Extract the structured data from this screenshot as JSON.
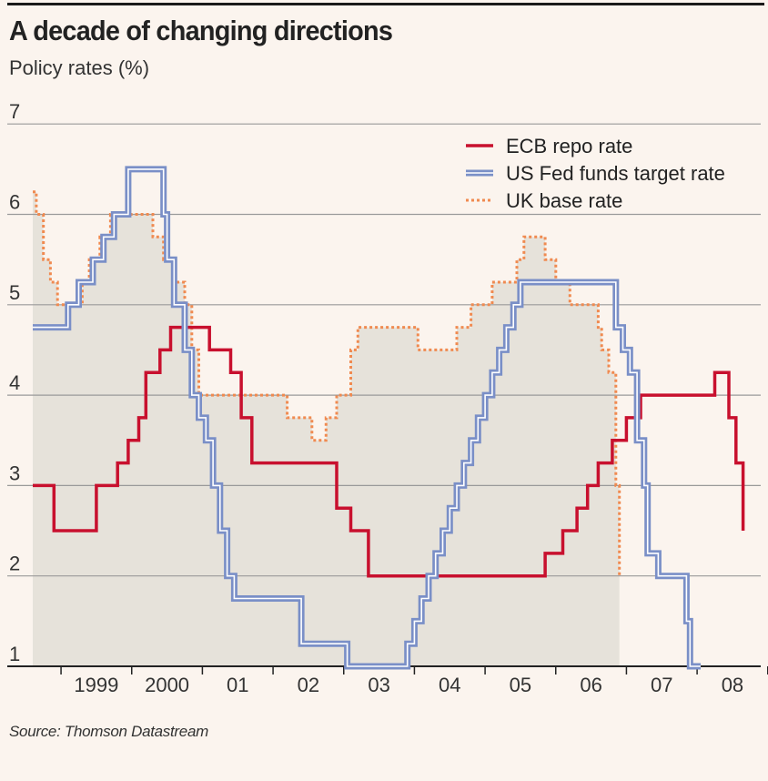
{
  "title": "A decade of changing directions",
  "subtitle": "Policy rates (%)",
  "source": "Source: Thomson Datastream",
  "chart_data": {
    "type": "line",
    "x_tick_labels": [
      "1999",
      "2000",
      "01",
      "02",
      "03",
      "04",
      "05",
      "06",
      "07",
      "08"
    ],
    "y_ticks": [
      1,
      2,
      3,
      4,
      5,
      6,
      7
    ],
    "ylim": [
      1,
      7
    ],
    "xlim": [
      1998.6,
      2008.9
    ],
    "grid": true,
    "legend_position": "top-right",
    "colors": {
      "ecb": "#c8102e",
      "fed": "#7a8fc7",
      "uk": "#f08a50",
      "uk_fill": "#e6e2da",
      "grid": "#9a9a9a"
    },
    "series": [
      {
        "name": "ECB repo rate",
        "style": "solid",
        "points": [
          [
            1998.6,
            3.0
          ],
          [
            1998.9,
            3.0
          ],
          [
            1998.9,
            2.5
          ],
          [
            1999.5,
            2.5
          ],
          [
            1999.5,
            3.0
          ],
          [
            1999.8,
            3.0
          ],
          [
            1999.8,
            3.25
          ],
          [
            1999.95,
            3.25
          ],
          [
            1999.95,
            3.5
          ],
          [
            2000.1,
            3.5
          ],
          [
            2000.1,
            3.75
          ],
          [
            2000.2,
            3.75
          ],
          [
            2000.2,
            4.25
          ],
          [
            2000.4,
            4.25
          ],
          [
            2000.4,
            4.5
          ],
          [
            2000.55,
            4.5
          ],
          [
            2000.55,
            4.75
          ],
          [
            2001.1,
            4.75
          ],
          [
            2001.1,
            4.5
          ],
          [
            2001.4,
            4.5
          ],
          [
            2001.4,
            4.25
          ],
          [
            2001.55,
            4.25
          ],
          [
            2001.55,
            3.75
          ],
          [
            2001.7,
            3.75
          ],
          [
            2001.7,
            3.25
          ],
          [
            2002.9,
            3.25
          ],
          [
            2002.9,
            2.75
          ],
          [
            2003.1,
            2.75
          ],
          [
            2003.1,
            2.5
          ],
          [
            2003.35,
            2.5
          ],
          [
            2003.35,
            2.0
          ],
          [
            2005.85,
            2.0
          ],
          [
            2005.85,
            2.25
          ],
          [
            2006.1,
            2.25
          ],
          [
            2006.1,
            2.5
          ],
          [
            2006.3,
            2.5
          ],
          [
            2006.3,
            2.75
          ],
          [
            2006.45,
            2.75
          ],
          [
            2006.45,
            3.0
          ],
          [
            2006.6,
            3.0
          ],
          [
            2006.6,
            3.25
          ],
          [
            2006.8,
            3.25
          ],
          [
            2006.8,
            3.5
          ],
          [
            2007.0,
            3.5
          ],
          [
            2007.0,
            3.75
          ],
          [
            2007.2,
            3.75
          ],
          [
            2007.2,
            4.0
          ],
          [
            2008.25,
            4.0
          ],
          [
            2008.25,
            4.25
          ],
          [
            2008.45,
            4.25
          ],
          [
            2008.45,
            3.75
          ],
          [
            2008.55,
            3.75
          ],
          [
            2008.55,
            3.25
          ],
          [
            2008.65,
            3.25
          ],
          [
            2008.65,
            2.5
          ]
        ]
      },
      {
        "name": "US Fed funds target rate",
        "style": "double",
        "points": [
          [
            1998.6,
            4.75
          ],
          [
            1999.1,
            4.75
          ],
          [
            1999.1,
            5.0
          ],
          [
            1999.25,
            5.0
          ],
          [
            1999.25,
            5.25
          ],
          [
            1999.45,
            5.25
          ],
          [
            1999.45,
            5.5
          ],
          [
            1999.6,
            5.5
          ],
          [
            1999.6,
            5.75
          ],
          [
            1999.75,
            5.75
          ],
          [
            1999.75,
            6.0
          ],
          [
            1999.95,
            6.0
          ],
          [
            1999.95,
            6.5
          ],
          [
            2000.45,
            6.5
          ],
          [
            2000.45,
            6.0
          ],
          [
            2000.5,
            6.0
          ],
          [
            2000.5,
            5.5
          ],
          [
            2000.6,
            5.5
          ],
          [
            2000.6,
            5.0
          ],
          [
            2000.75,
            5.0
          ],
          [
            2000.75,
            4.5
          ],
          [
            2000.85,
            4.5
          ],
          [
            2000.85,
            4.0
          ],
          [
            2000.95,
            4.0
          ],
          [
            2000.95,
            3.75
          ],
          [
            2001.05,
            3.75
          ],
          [
            2001.05,
            3.5
          ],
          [
            2001.15,
            3.5
          ],
          [
            2001.15,
            3.0
          ],
          [
            2001.25,
            3.0
          ],
          [
            2001.25,
            2.5
          ],
          [
            2001.35,
            2.5
          ],
          [
            2001.35,
            2.0
          ],
          [
            2001.45,
            2.0
          ],
          [
            2001.45,
            1.75
          ],
          [
            2002.4,
            1.75
          ],
          [
            2002.4,
            1.25
          ],
          [
            2003.05,
            1.25
          ],
          [
            2003.05,
            1.0
          ],
          [
            2003.9,
            1.0
          ],
          [
            2003.9,
            1.25
          ],
          [
            2004.0,
            1.25
          ],
          [
            2004.0,
            1.5
          ],
          [
            2004.1,
            1.5
          ],
          [
            2004.1,
            1.75
          ],
          [
            2004.2,
            1.75
          ],
          [
            2004.2,
            2.0
          ],
          [
            2004.3,
            2.0
          ],
          [
            2004.3,
            2.25
          ],
          [
            2004.4,
            2.25
          ],
          [
            2004.4,
            2.5
          ],
          [
            2004.5,
            2.5
          ],
          [
            2004.5,
            2.75
          ],
          [
            2004.6,
            2.75
          ],
          [
            2004.6,
            3.0
          ],
          [
            2004.7,
            3.0
          ],
          [
            2004.7,
            3.25
          ],
          [
            2004.8,
            3.25
          ],
          [
            2004.8,
            3.5
          ],
          [
            2004.9,
            3.5
          ],
          [
            2004.9,
            3.75
          ],
          [
            2005.0,
            3.75
          ],
          [
            2005.0,
            4.0
          ],
          [
            2005.1,
            4.0
          ],
          [
            2005.1,
            4.25
          ],
          [
            2005.2,
            4.25
          ],
          [
            2005.2,
            4.5
          ],
          [
            2005.3,
            4.5
          ],
          [
            2005.3,
            4.75
          ],
          [
            2005.4,
            4.75
          ],
          [
            2005.4,
            5.0
          ],
          [
            2005.5,
            5.0
          ],
          [
            2005.5,
            5.25
          ],
          [
            2006.85,
            5.25
          ],
          [
            2006.85,
            4.75
          ],
          [
            2006.95,
            4.75
          ],
          [
            2006.95,
            4.5
          ],
          [
            2007.05,
            4.5
          ],
          [
            2007.05,
            4.25
          ],
          [
            2007.15,
            4.25
          ],
          [
            2007.15,
            3.5
          ],
          [
            2007.25,
            3.5
          ],
          [
            2007.25,
            3.0
          ],
          [
            2007.3,
            3.0
          ],
          [
            2007.3,
            2.25
          ],
          [
            2007.45,
            2.25
          ],
          [
            2007.45,
            2.0
          ],
          [
            2007.85,
            2.0
          ],
          [
            2007.85,
            1.5
          ],
          [
            2007.9,
            1.5
          ],
          [
            2007.9,
            1.0
          ],
          [
            2008.05,
            1.0
          ]
        ]
      },
      {
        "name": "UK base rate",
        "style": "dotted",
        "points": [
          [
            1998.6,
            6.25
          ],
          [
            1998.65,
            6.25
          ],
          [
            1998.65,
            6.0
          ],
          [
            1998.75,
            6.0
          ],
          [
            1998.75,
            5.5
          ],
          [
            1998.85,
            5.5
          ],
          [
            1998.85,
            5.25
          ],
          [
            1998.95,
            5.25
          ],
          [
            1998.95,
            5.0
          ],
          [
            1999.3,
            5.0
          ],
          [
            1999.3,
            5.25
          ],
          [
            1999.4,
            5.25
          ],
          [
            1999.4,
            5.5
          ],
          [
            1999.55,
            5.5
          ],
          [
            1999.55,
            5.75
          ],
          [
            1999.7,
            5.75
          ],
          [
            1999.7,
            6.0
          ],
          [
            2000.3,
            6.0
          ],
          [
            2000.3,
            5.75
          ],
          [
            2000.45,
            5.75
          ],
          [
            2000.45,
            5.5
          ],
          [
            2000.6,
            5.5
          ],
          [
            2000.6,
            5.25
          ],
          [
            2000.75,
            5.25
          ],
          [
            2000.75,
            5.0
          ],
          [
            2000.85,
            5.0
          ],
          [
            2000.85,
            4.5
          ],
          [
            2000.95,
            4.5
          ],
          [
            2000.95,
            4.0
          ],
          [
            2002.2,
            4.0
          ],
          [
            2002.2,
            3.75
          ],
          [
            2002.55,
            3.75
          ],
          [
            2002.55,
            3.5
          ],
          [
            2002.75,
            3.5
          ],
          [
            2002.75,
            3.75
          ],
          [
            2002.9,
            3.75
          ],
          [
            2002.9,
            4.0
          ],
          [
            2003.1,
            4.0
          ],
          [
            2003.1,
            4.5
          ],
          [
            2003.2,
            4.5
          ],
          [
            2003.2,
            4.75
          ],
          [
            2004.05,
            4.75
          ],
          [
            2004.05,
            4.5
          ],
          [
            2004.6,
            4.5
          ],
          [
            2004.6,
            4.75
          ],
          [
            2004.8,
            4.75
          ],
          [
            2004.8,
            5.0
          ],
          [
            2005.1,
            5.0
          ],
          [
            2005.1,
            5.25
          ],
          [
            2005.45,
            5.25
          ],
          [
            2005.45,
            5.5
          ],
          [
            2005.55,
            5.5
          ],
          [
            2005.55,
            5.75
          ],
          [
            2005.85,
            5.75
          ],
          [
            2005.85,
            5.5
          ],
          [
            2006.0,
            5.5
          ],
          [
            2006.0,
            5.25
          ],
          [
            2006.2,
            5.25
          ],
          [
            2006.2,
            5.0
          ],
          [
            2006.6,
            5.0
          ],
          [
            2006.6,
            4.75
          ],
          [
            2006.65,
            4.75
          ],
          [
            2006.65,
            4.5
          ],
          [
            2006.75,
            4.5
          ],
          [
            2006.75,
            4.25
          ],
          [
            2006.85,
            4.25
          ],
          [
            2006.85,
            3.0
          ],
          [
            2006.9,
            3.0
          ],
          [
            2006.9,
            2.0
          ]
        ]
      }
    ]
  }
}
